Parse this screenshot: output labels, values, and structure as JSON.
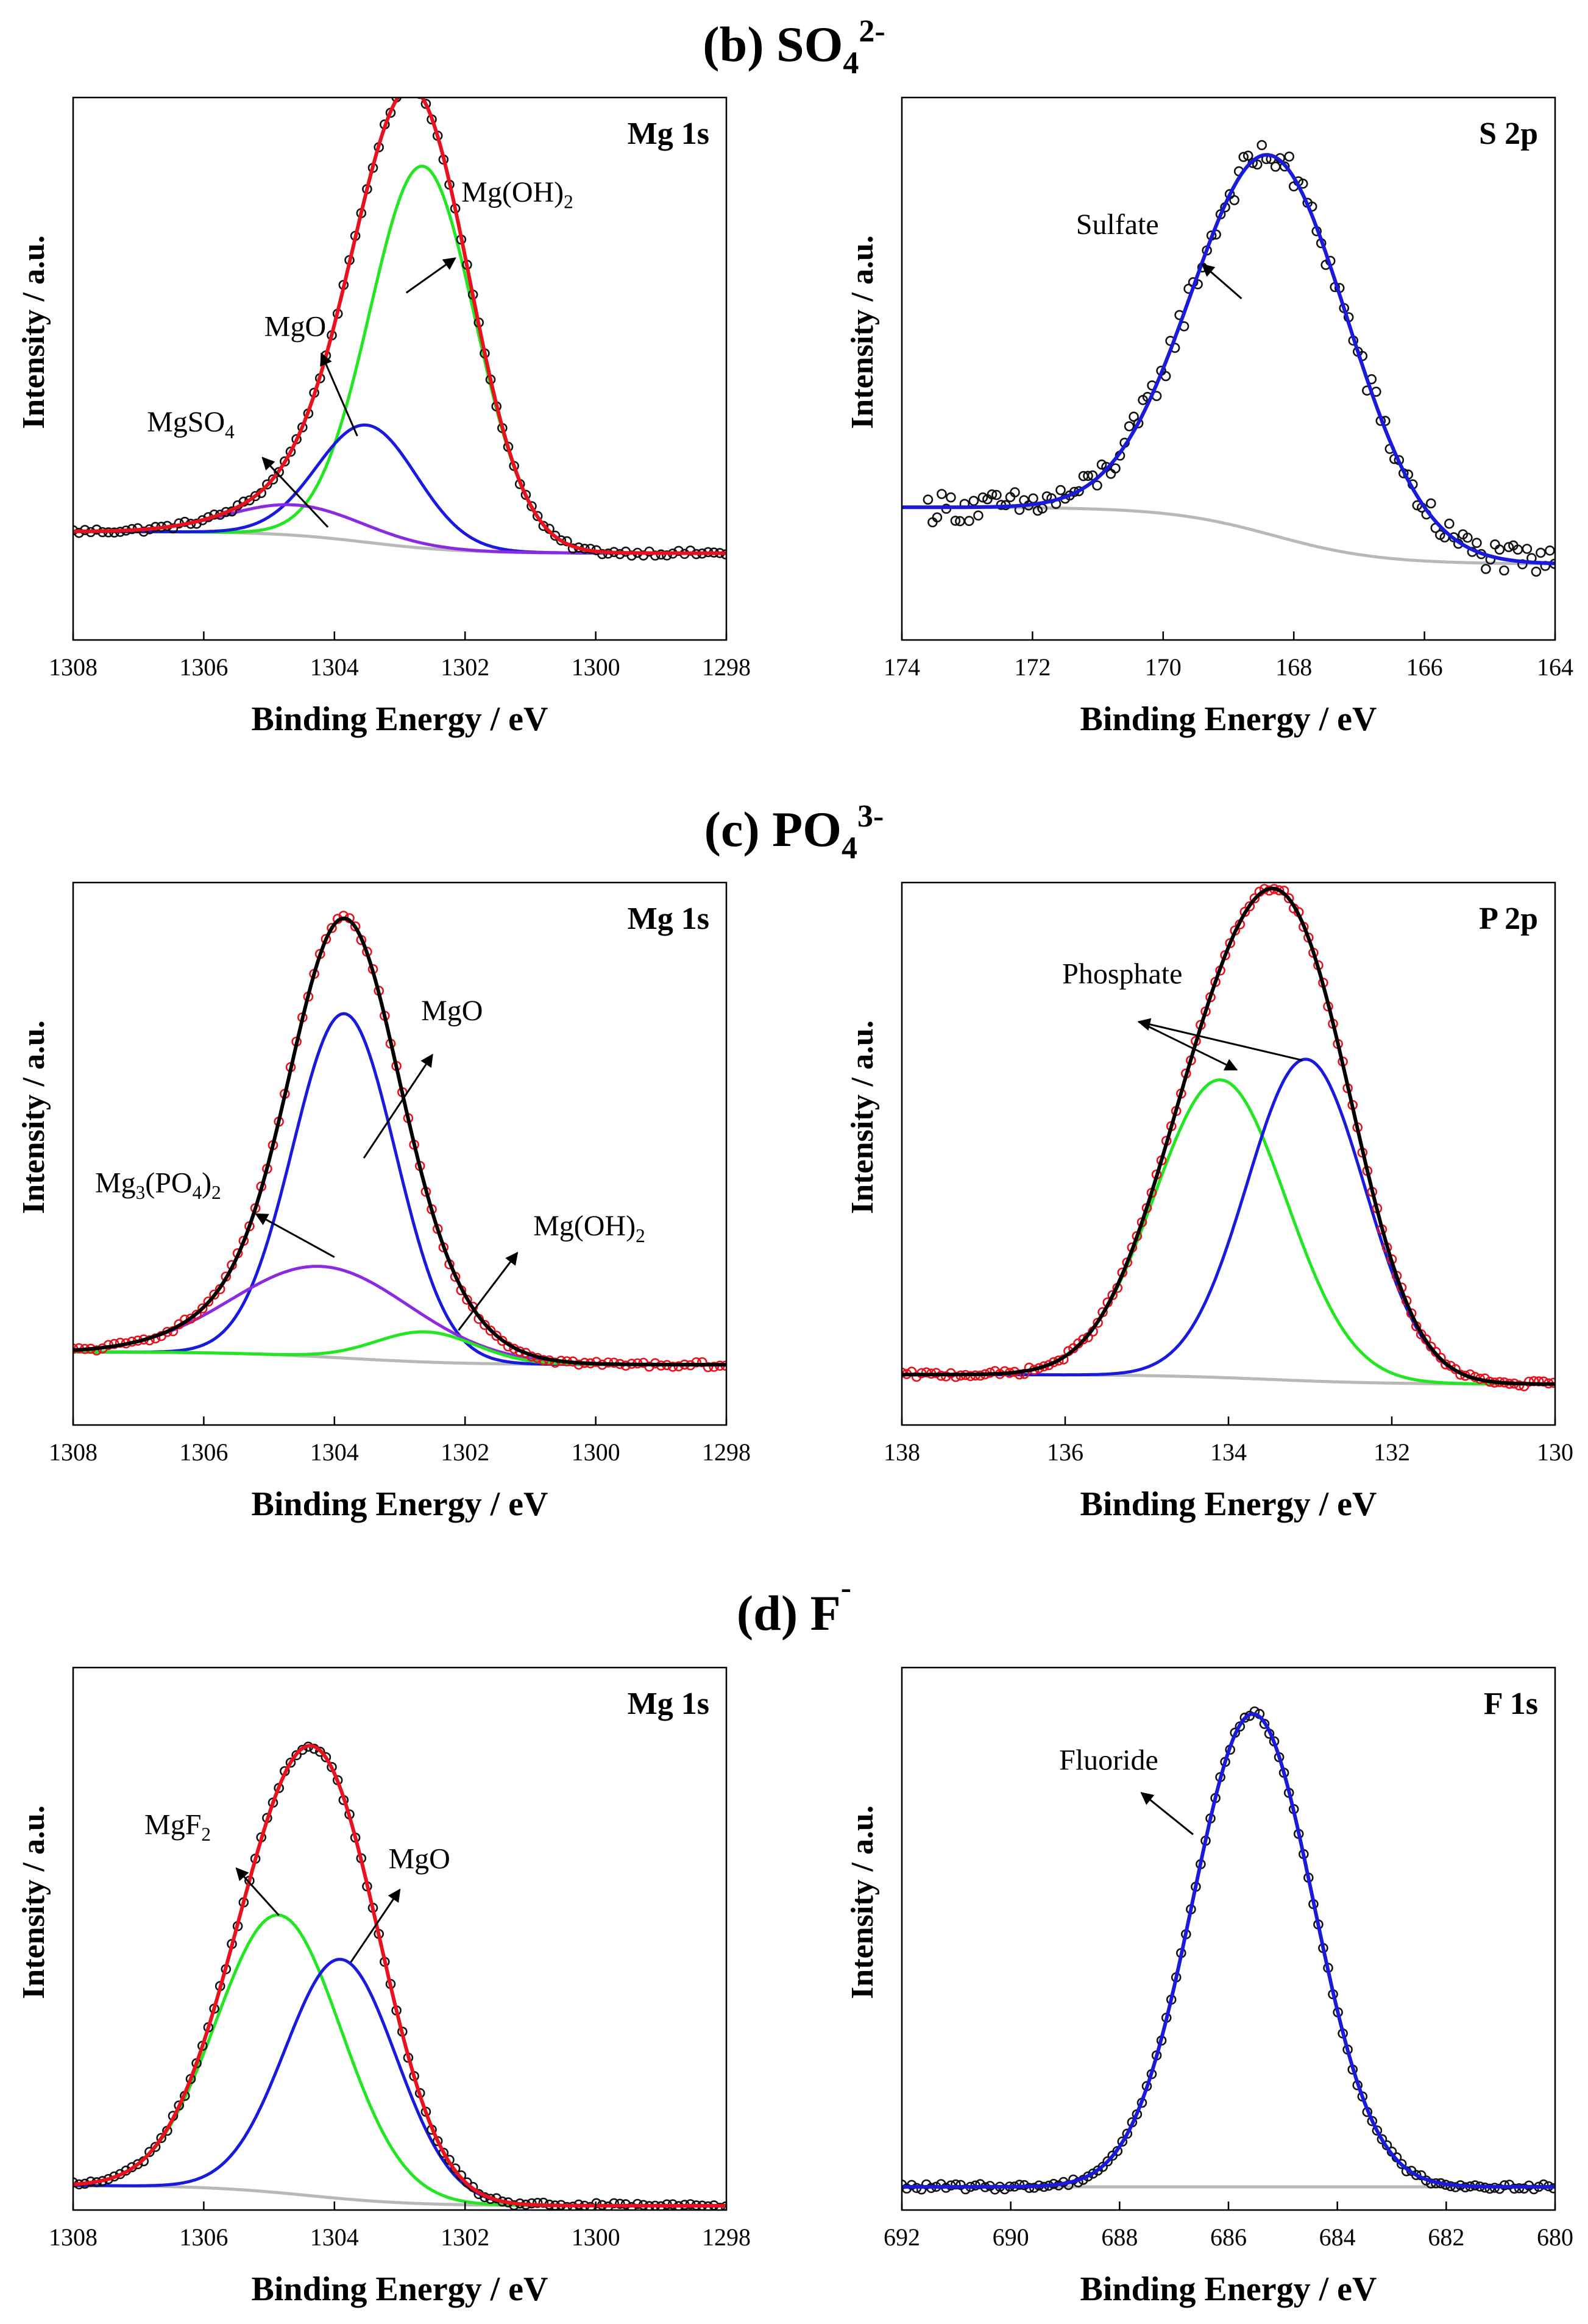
{
  "figure": {
    "section_titles": [
      {
        "prefix": "(b) SO",
        "sub": "4",
        "sup": "2-"
      },
      {
        "prefix": "(c) PO",
        "sub": "4",
        "sup": "3-"
      },
      {
        "prefix": "(d) F",
        "sub": "",
        "sup": "-"
      }
    ]
  },
  "colors": {
    "raw_black": "#111111",
    "raw_red": "#e8111d",
    "envelope_black": "#000000",
    "envelope_red": "#e8111d",
    "green": "#22e622",
    "blue": "#1a1adc",
    "purple": "#8a2be2",
    "background": "#b8b8b8"
  },
  "chart_data": [
    {
      "id": "b-mg1s",
      "type": "line",
      "title": "Mg 1s",
      "xlabel": "Binding Energy / eV",
      "ylabel": "Intensity / a.u.",
      "xlim": [
        1308,
        1298
      ],
      "ylim": [
        -0.2,
        1.05
      ],
      "xticks": [
        1308,
        1306,
        1304,
        1302,
        1300,
        1298
      ],
      "grid": false,
      "background": {
        "type": "shirley",
        "high": 0.05,
        "low": 0.0,
        "center": 1303.5,
        "width": 1.6
      },
      "components": [
        {
          "name": "Mg(OH)2",
          "color": "blue_green",
          "peaks": [
            {
              "center": 1302.65,
              "height": 0.88,
              "fwhm": 1.9
            }
          ]
        },
        {
          "name": "MgO",
          "peaks": [
            {
              "center": 1303.5,
              "height": 0.27,
              "fwhm": 1.8
            }
          ]
        },
        {
          "name": "MgSO4",
          "peaks": [
            {
              "center": 1304.6,
              "height": 0.07,
              "fwhm": 2.4
            }
          ]
        }
      ],
      "component_colors": [
        "green",
        "blue",
        "purple"
      ],
      "raw": {
        "color": "raw_black",
        "x_range": [
          1308,
          1298
        ],
        "step": 0.09,
        "noise": 0.006
      },
      "envelope": {
        "color": "envelope_red"
      },
      "annotations": [
        {
          "parts": [
            {
              "t": "Mg(OH)"
            },
            {
              "t": "2",
              "sub": true
            }
          ],
          "x": 1301.2,
          "y": 0.81,
          "arrow_from": [
            1302.15,
            0.68
          ],
          "arrow_to": [
            1302.9,
            0.6
          ]
        },
        {
          "parts": [
            {
              "t": "MgO"
            }
          ],
          "x": 1304.6,
          "y": 0.5,
          "arrow_from": [
            1304.2,
            0.46
          ],
          "arrow_to": [
            1303.65,
            0.27
          ]
        },
        {
          "parts": [
            {
              "t": "MgSO"
            },
            {
              "t": "4",
              "sub": true
            }
          ],
          "x": 1306.2,
          "y": 0.28,
          "arrow_from": [
            1305.1,
            0.22
          ],
          "arrow_to": [
            1304.1,
            0.06
          ]
        }
      ]
    },
    {
      "id": "b-s2p",
      "type": "line",
      "title": "S 2p",
      "xlabel": "Binding Energy / eV",
      "ylabel": "Intensity / a.u.",
      "xlim": [
        174,
        164
      ],
      "ylim": [
        -0.35,
        1.08
      ],
      "xticks": [
        174,
        172,
        170,
        168,
        166,
        164
      ],
      "grid": false,
      "background": {
        "type": "shirley",
        "high": 0.0,
        "low": -0.15,
        "center": 168.3,
        "width": 1.8
      },
      "components": [
        {
          "name": "Sulfate",
          "peaks": [
            {
              "center": 168.35,
              "height": 1.0,
              "fwhm": 2.8
            }
          ]
        }
      ],
      "component_colors": [
        "blue"
      ],
      "raw": {
        "color": "raw_black",
        "x_range": [
          173.6,
          164
        ],
        "step": 0.07,
        "noise": 0.025
      },
      "envelope": {
        "color": "blue"
      },
      "annotations": [
        {
          "parts": [
            {
              "t": "Sulfate"
            }
          ],
          "x": 170.7,
          "y": 0.72,
          "arrow_from": [
            169.4,
            0.64
          ],
          "arrow_to": [
            168.8,
            0.55
          ]
        }
      ]
    },
    {
      "id": "c-mg1s",
      "type": "line",
      "title": "Mg 1s",
      "xlabel": "Binding Energy / eV",
      "ylabel": "Intensity / a.u.",
      "xlim": [
        1308,
        1298
      ],
      "ylim": [
        -0.16,
        1.1
      ],
      "xticks": [
        1308,
        1306,
        1304,
        1302,
        1300,
        1298
      ],
      "grid": false,
      "background": {
        "type": "shirley",
        "high": 0.01,
        "low": -0.02,
        "center": 1303.8,
        "width": 2.0
      },
      "components": [
        {
          "name": "MgO",
          "peaks": [
            {
              "center": 1303.85,
              "height": 0.8,
              "fwhm": 1.85
            }
          ]
        },
        {
          "name": "Mg3(PO4)2",
          "peaks": [
            {
              "center": 1304.2,
              "height": 0.21,
              "fwhm": 3.2
            }
          ]
        },
        {
          "name": "Mg(OH)2",
          "peaks": [
            {
              "center": 1302.6,
              "height": 0.07,
              "fwhm": 1.8
            }
          ]
        }
      ],
      "component_colors": [
        "blue",
        "purple",
        "green"
      ],
      "raw": {
        "color": "raw_red",
        "x_range": [
          1308,
          1298
        ],
        "step": 0.09,
        "noise": 0.006
      },
      "envelope": {
        "color": "envelope_black"
      },
      "annotations": [
        {
          "parts": [
            {
              "t": "MgO"
            }
          ],
          "x": 1302.2,
          "y": 0.78,
          "arrow_from": [
            1302.5,
            0.7
          ],
          "arrow_to": [
            1303.55,
            0.46
          ]
        },
        {
          "parts": [
            {
              "t": "Mg"
            },
            {
              "t": "3",
              "sub": true
            },
            {
              "t": "(PO"
            },
            {
              "t": "4",
              "sub": true
            },
            {
              "t": ")"
            },
            {
              "t": "2",
              "sub": true
            }
          ],
          "x": 1306.7,
          "y": 0.38,
          "arrow_from": [
            1305.2,
            0.33
          ],
          "arrow_to": [
            1304.0,
            0.23
          ]
        },
        {
          "parts": [
            {
              "t": "Mg(OH)"
            },
            {
              "t": "2",
              "sub": true
            }
          ],
          "x": 1300.1,
          "y": 0.28,
          "arrow_from": [
            1301.2,
            0.24
          ],
          "arrow_to": [
            1302.1,
            0.06
          ]
        }
      ]
    },
    {
      "id": "c-p2p",
      "type": "line",
      "title": "P 2p",
      "xlabel": "Binding Energy / eV",
      "ylabel": "Intensity / a.u.",
      "xlim": [
        138,
        130
      ],
      "ylim": [
        -0.1,
        1.03
      ],
      "xticks": [
        138,
        136,
        134,
        132,
        130
      ],
      "grid": false,
      "background": {
        "type": "shirley",
        "high": 0.005,
        "low": -0.015,
        "center": 133.5,
        "width": 1.6
      },
      "components": [
        {
          "name": "Phosphate",
          "peaks": [
            {
              "center": 134.1,
              "height": 0.62,
              "fwhm": 1.9
            }
          ]
        },
        {
          "name": "Phosphate",
          "peaks": [
            {
              "center": 133.05,
              "height": 0.67,
              "fwhm": 1.7
            }
          ]
        }
      ],
      "component_colors": [
        "green",
        "blue"
      ],
      "raw": {
        "color": "raw_red",
        "x_range": [
          138,
          130
        ],
        "step": 0.06,
        "noise": 0.006
      },
      "envelope": {
        "color": "envelope_black"
      },
      "annotations": [
        {
          "parts": [
            {
              "t": "Phosphate"
            }
          ],
          "x": 135.3,
          "y": 0.82,
          "arrow_from": [
            133.9,
            0.64
          ],
          "arrow_to": [
            135.1,
            0.74
          ],
          "arrow_from2": [
            133.1,
            0.66
          ],
          "arrow_to2": [
            135.1,
            0.74
          ]
        }
      ]
    },
    {
      "id": "d-mg1s",
      "type": "line",
      "title": "Mg 1s",
      "xlabel": "Binding Energy / eV",
      "ylabel": "Intensity / a.u.",
      "xlim": [
        1308,
        1298
      ],
      "ylim": [
        -0.05,
        1.22
      ],
      "xticks": [
        1308,
        1306,
        1304,
        1302,
        1300,
        1298
      ],
      "grid": false,
      "background": {
        "type": "shirley",
        "high": 0.008,
        "low": -0.04,
        "center": 1304.4,
        "width": 1.8
      },
      "components": [
        {
          "name": "MgF2",
          "peaks": [
            {
              "center": 1304.85,
              "height": 0.65,
              "fwhm": 2.25
            }
          ]
        },
        {
          "name": "MgO",
          "peaks": [
            {
              "center": 1303.9,
              "height": 0.56,
              "fwhm": 2.0
            }
          ]
        }
      ],
      "component_colors": [
        "green",
        "blue"
      ],
      "raw": {
        "color": "raw_black",
        "x_range": [
          1308,
          1298
        ],
        "step": 0.09,
        "noise": 0.006
      },
      "envelope": {
        "color": "envelope_red"
      },
      "annotations": [
        {
          "parts": [
            {
              "t": "MgF"
            },
            {
              "t": "2",
              "sub": true
            }
          ],
          "x": 1306.4,
          "y": 0.83,
          "arrow_from": [
            1305.5,
            0.75
          ],
          "arrow_to": [
            1304.85,
            0.64
          ]
        },
        {
          "parts": [
            {
              "t": "MgO"
            }
          ],
          "x": 1302.7,
          "y": 0.75,
          "arrow_from": [
            1303.0,
            0.7
          ],
          "arrow_to": [
            1303.75,
            0.53
          ]
        }
      ]
    },
    {
      "id": "d-f1s",
      "type": "line",
      "title": "F 1s",
      "xlabel": "Binding Energy / eV",
      "ylabel": "Intensity / a.u.",
      "xlim": [
        692,
        680
      ],
      "ylim": [
        -0.05,
        1.12
      ],
      "xticks": [
        692,
        690,
        688,
        686,
        684,
        682,
        680
      ],
      "grid": false,
      "background": {
        "type": "shirley",
        "high": 0.0,
        "low": 0.0,
        "center": 685.5,
        "width": 1.6
      },
      "components": [
        {
          "name": "Fluoride",
          "peaks": [
            {
              "center": 685.55,
              "height": 1.02,
              "fwhm": 2.6
            }
          ]
        }
      ],
      "component_colors": [
        "blue"
      ],
      "raw": {
        "color": "raw_black",
        "x_range": [
          692,
          680
        ],
        "step": 0.09,
        "noise": 0.006
      },
      "envelope": {
        "color": "blue"
      },
      "annotations": [
        {
          "parts": [
            {
              "t": "Fluoride"
            }
          ],
          "x": 688.2,
          "y": 0.9,
          "arrow_from": [
            687.6,
            0.85
          ],
          "arrow_to": [
            686.65,
            0.76
          ]
        }
      ]
    }
  ]
}
